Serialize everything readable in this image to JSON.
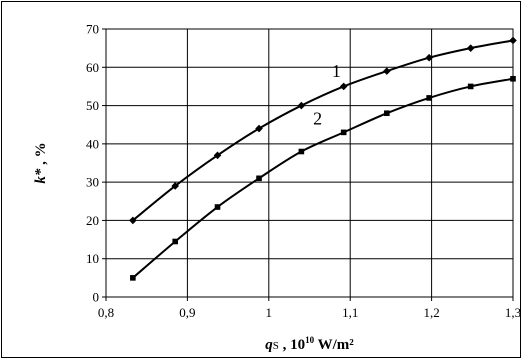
{
  "chart_data": {
    "type": "line",
    "xlabel": {
      "var": "q",
      "sub": "S",
      "rest": " , 10",
      "sup": "10",
      "unit": " W/m²"
    },
    "ylabel": {
      "var": "k*",
      "rest": " , %"
    },
    "xlim": [
      0.8,
      1.3
    ],
    "ylim": [
      0,
      70
    ],
    "xticks": [
      0.8,
      0.9,
      1.0,
      1.1,
      1.2,
      1.3
    ],
    "xtick_labels": [
      "0,8",
      "0,9",
      "1",
      "1,1",
      "1,2",
      "1,3"
    ],
    "yticks": [
      0,
      10,
      20,
      30,
      40,
      50,
      60,
      70
    ],
    "ytick_labels": [
      "0",
      "10",
      "20",
      "30",
      "40",
      "50",
      "60",
      "70"
    ],
    "grid": true,
    "series": [
      {
        "name": "1",
        "marker": "diamond",
        "x": [
          0.833,
          0.885,
          0.937,
          0.988,
          1.04,
          1.092,
          1.145,
          1.197,
          1.248,
          1.3
        ],
        "y": [
          20,
          29,
          37,
          44,
          50,
          55,
          59,
          62.5,
          65,
          67
        ]
      },
      {
        "name": "2",
        "marker": "square",
        "x": [
          0.833,
          0.885,
          0.937,
          0.988,
          1.04,
          1.092,
          1.145,
          1.197,
          1.248,
          1.3
        ],
        "y": [
          5,
          14.5,
          23.5,
          31,
          38,
          43,
          48,
          52,
          55,
          57
        ]
      }
    ],
    "curve_labels": [
      {
        "text": "1",
        "x": 1.083,
        "y": 57.5
      },
      {
        "text": "2",
        "x": 1.06,
        "y": 45
      }
    ]
  }
}
